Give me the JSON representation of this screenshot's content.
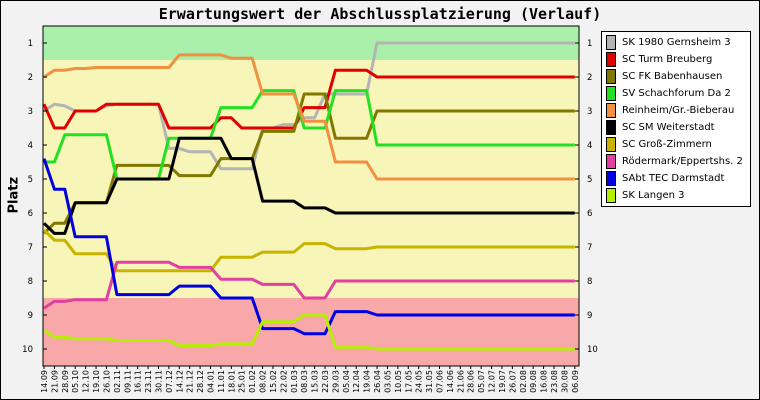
{
  "chart_data": {
    "type": "line",
    "title": "Erwartungswert der Abschlussplatzierung (Verlauf)",
    "ylabel": "Platz",
    "xlabel": "",
    "ylim": [
      0.5,
      10.5
    ],
    "y_reversed": true,
    "y_ticks": [
      1,
      2,
      3,
      4,
      5,
      6,
      7,
      8,
      9,
      10
    ],
    "grid": false,
    "legend_position": "right",
    "background_bands": [
      {
        "from": 0.5,
        "to": 1.5,
        "color": "#aaf0aa"
      },
      {
        "from": 1.5,
        "to": 8.5,
        "color": "#f8f5b8"
      },
      {
        "from": 8.5,
        "to": 10.5,
        "color": "#f8a8a8"
      }
    ],
    "x": [
      "14.09",
      "21.09",
      "28.09",
      "05.10",
      "12.10",
      "19.10",
      "26.10",
      "02.11",
      "09.11",
      "16.11",
      "23.11",
      "30.11",
      "07.12",
      "14.12",
      "21.12",
      "28.12",
      "04.01",
      "11.01",
      "18.01",
      "25.01",
      "01.02",
      "08.02",
      "15.02",
      "22.02",
      "01.03",
      "08.03",
      "15.03",
      "22.03",
      "29.03",
      "05.04",
      "12.04",
      "19.04",
      "26.04",
      "03.05",
      "10.05",
      "17.05",
      "24.05",
      "31.05",
      "07.06",
      "14.06",
      "21.06",
      "28.06",
      "05.07",
      "12.07",
      "19.07",
      "26.07",
      "02.08",
      "09.08",
      "16.08",
      "23.08",
      "30.08",
      "06.09"
    ],
    "series": [
      {
        "name": "SK 1980 Gernsheim 3",
        "color": "#b4b4b4",
        "values": [
          3.0,
          2.8,
          2.85,
          3.0,
          3.0,
          3.0,
          2.85,
          2.8,
          2.8,
          2.8,
          2.8,
          2.8,
          4.1,
          4.1,
          4.2,
          4.2,
          4.2,
          4.7,
          4.7,
          4.7,
          4.7,
          3.5,
          3.5,
          3.4,
          3.4,
          3.2,
          3.2,
          2.5,
          2.5,
          2.5,
          2.5,
          2.5,
          1.0,
          1.0,
          1.0,
          1.0,
          1.0,
          1.0,
          1.0,
          1.0,
          1.0,
          1.0,
          1.0,
          1.0,
          1.0,
          1.0,
          1.0,
          1.0,
          1.0,
          1.0,
          1.0,
          1.0
        ]
      },
      {
        "name": "SC Turm Breuberg",
        "color": "#e00000",
        "values": [
          2.8,
          3.5,
          3.5,
          3.0,
          3.0,
          3.0,
          2.8,
          2.8,
          2.8,
          2.8,
          2.8,
          2.8,
          3.5,
          3.5,
          3.5,
          3.5,
          3.5,
          3.2,
          3.2,
          3.5,
          3.5,
          3.5,
          3.5,
          3.5,
          3.5,
          2.9,
          2.9,
          2.9,
          1.8,
          1.8,
          1.8,
          1.8,
          2.0,
          2.0,
          2.0,
          2.0,
          2.0,
          2.0,
          2.0,
          2.0,
          2.0,
          2.0,
          2.0,
          2.0,
          2.0,
          2.0,
          2.0,
          2.0,
          2.0,
          2.0,
          2.0,
          2.0
        ]
      },
      {
        "name": "SC FK Babenhausen",
        "color": "#807800",
        "values": [
          6.6,
          6.3,
          6.3,
          5.7,
          5.7,
          5.7,
          5.7,
          4.6,
          4.6,
          4.6,
          4.6,
          4.6,
          4.6,
          4.9,
          4.9,
          4.9,
          4.9,
          4.4,
          4.4,
          4.4,
          4.4,
          3.6,
          3.6,
          3.6,
          3.6,
          2.5,
          2.5,
          2.5,
          3.8,
          3.8,
          3.8,
          3.8,
          3.0,
          3.0,
          3.0,
          3.0,
          3.0,
          3.0,
          3.0,
          3.0,
          3.0,
          3.0,
          3.0,
          3.0,
          3.0,
          3.0,
          3.0,
          3.0,
          3.0,
          3.0,
          3.0,
          3.0
        ]
      },
      {
        "name": "SV Schachforum Da 2",
        "color": "#22e022",
        "values": [
          4.5,
          4.5,
          3.7,
          3.7,
          3.7,
          3.7,
          3.7,
          5.0,
          5.0,
          5.0,
          5.0,
          5.0,
          3.8,
          3.8,
          3.8,
          3.8,
          3.8,
          2.9,
          2.9,
          2.9,
          2.9,
          2.4,
          2.4,
          2.4,
          2.4,
          3.5,
          3.5,
          3.5,
          2.4,
          2.4,
          2.4,
          2.4,
          4.0,
          4.0,
          4.0,
          4.0,
          4.0,
          4.0,
          4.0,
          4.0,
          4.0,
          4.0,
          4.0,
          4.0,
          4.0,
          4.0,
          4.0,
          4.0,
          4.0,
          4.0,
          4.0,
          4.0
        ]
      },
      {
        "name": "Reinheim/Gr.-Bieberau",
        "color": "#f09040",
        "values": [
          2.0,
          1.8,
          1.8,
          1.75,
          1.75,
          1.72,
          1.72,
          1.72,
          1.72,
          1.72,
          1.72,
          1.72,
          1.72,
          1.35,
          1.35,
          1.35,
          1.35,
          1.35,
          1.45,
          1.45,
          1.45,
          2.5,
          2.5,
          2.5,
          2.5,
          3.3,
          3.3,
          3.3,
          4.5,
          4.5,
          4.5,
          4.5,
          5.0,
          5.0,
          5.0,
          5.0,
          5.0,
          5.0,
          5.0,
          5.0,
          5.0,
          5.0,
          5.0,
          5.0,
          5.0,
          5.0,
          5.0,
          5.0,
          5.0,
          5.0,
          5.0,
          5.0
        ]
      },
      {
        "name": "SC SM Weiterstadt",
        "color": "#000000",
        "values": [
          6.3,
          6.6,
          6.6,
          5.7,
          5.7,
          5.7,
          5.7,
          5.0,
          5.0,
          5.0,
          5.0,
          5.0,
          5.0,
          3.8,
          3.8,
          3.8,
          3.8,
          3.8,
          4.4,
          4.4,
          4.4,
          5.65,
          5.65,
          5.65,
          5.65,
          5.85,
          5.85,
          5.85,
          6.0,
          6.0,
          6.0,
          6.0,
          6.0,
          6.0,
          6.0,
          6.0,
          6.0,
          6.0,
          6.0,
          6.0,
          6.0,
          6.0,
          6.0,
          6.0,
          6.0,
          6.0,
          6.0,
          6.0,
          6.0,
          6.0,
          6.0,
          6.0
        ]
      },
      {
        "name": "SC Groß-Zimmern",
        "color": "#c8b400",
        "values": [
          6.5,
          6.8,
          6.8,
          7.2,
          7.2,
          7.2,
          7.2,
          7.7,
          7.7,
          7.7,
          7.7,
          7.7,
          7.7,
          7.7,
          7.7,
          7.7,
          7.7,
          7.3,
          7.3,
          7.3,
          7.3,
          7.15,
          7.15,
          7.15,
          7.15,
          6.9,
          6.9,
          6.9,
          7.05,
          7.05,
          7.05,
          7.05,
          7.0,
          7.0,
          7.0,
          7.0,
          7.0,
          7.0,
          7.0,
          7.0,
          7.0,
          7.0,
          7.0,
          7.0,
          7.0,
          7.0,
          7.0,
          7.0,
          7.0,
          7.0,
          7.0,
          7.0
        ]
      },
      {
        "name": "Rödermark/Eppertshs. 2",
        "color": "#e040a0",
        "values": [
          8.8,
          8.6,
          8.6,
          8.55,
          8.55,
          8.55,
          8.55,
          7.45,
          7.45,
          7.45,
          7.45,
          7.45,
          7.45,
          7.6,
          7.6,
          7.6,
          7.6,
          7.95,
          7.95,
          7.95,
          7.95,
          8.1,
          8.1,
          8.1,
          8.1,
          8.5,
          8.5,
          8.5,
          8.0,
          8.0,
          8.0,
          8.0,
          8.0,
          8.0,
          8.0,
          8.0,
          8.0,
          8.0,
          8.0,
          8.0,
          8.0,
          8.0,
          8.0,
          8.0,
          8.0,
          8.0,
          8.0,
          8.0,
          8.0,
          8.0,
          8.0,
          8.0
        ]
      },
      {
        "name": "SAbt TEC Darmstadt",
        "color": "#0000e0",
        "values": [
          4.4,
          5.3,
          5.3,
          6.7,
          6.7,
          6.7,
          6.7,
          8.4,
          8.4,
          8.4,
          8.4,
          8.4,
          8.4,
          8.15,
          8.15,
          8.15,
          8.15,
          8.5,
          8.5,
          8.5,
          8.5,
          9.4,
          9.4,
          9.4,
          9.4,
          9.55,
          9.55,
          9.55,
          8.9,
          8.9,
          8.9,
          8.9,
          9.0,
          9.0,
          9.0,
          9.0,
          9.0,
          9.0,
          9.0,
          9.0,
          9.0,
          9.0,
          9.0,
          9.0,
          9.0,
          9.0,
          9.0,
          9.0,
          9.0,
          9.0,
          9.0,
          9.0
        ]
      },
      {
        "name": "SK Langen 3",
        "color": "#b4f000",
        "values": [
          9.45,
          9.65,
          9.65,
          9.7,
          9.7,
          9.7,
          9.7,
          9.75,
          9.75,
          9.75,
          9.75,
          9.75,
          9.75,
          9.9,
          9.9,
          9.9,
          9.9,
          9.85,
          9.85,
          9.85,
          9.85,
          9.2,
          9.2,
          9.2,
          9.2,
          9.0,
          9.0,
          9.0,
          9.95,
          9.95,
          9.95,
          9.95,
          10.0,
          10.0,
          10.0,
          10.0,
          10.0,
          10.0,
          10.0,
          10.0,
          10.0,
          10.0,
          10.0,
          10.0,
          10.0,
          10.0,
          10.0,
          10.0,
          10.0,
          10.0,
          10.0,
          10.0
        ]
      }
    ]
  }
}
